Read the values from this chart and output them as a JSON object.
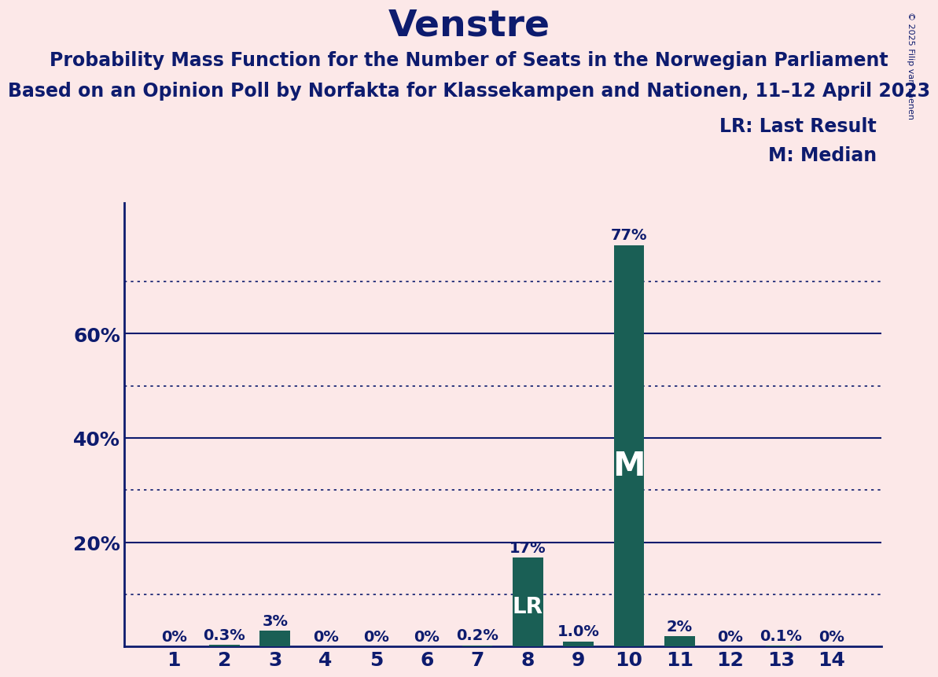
{
  "title": "Venstre",
  "subtitle1": "Probability Mass Function for the Number of Seats in the Norwegian Parliament",
  "subtitle2": "Based on an Opinion Poll by Norfakta for Klassekampen and Nationen, 11–12 April 2023",
  "copyright": "© 2025 Filip van Laenen",
  "categories": [
    1,
    2,
    3,
    4,
    5,
    6,
    7,
    8,
    9,
    10,
    11,
    12,
    13,
    14
  ],
  "values": [
    0.0,
    0.3,
    3.0,
    0.0,
    0.0,
    0.0,
    0.2,
    17.0,
    1.0,
    77.0,
    2.0,
    0.0,
    0.1,
    0.0
  ],
  "labels": [
    "0%",
    "0.3%",
    "3%",
    "0%",
    "0%",
    "0%",
    "0.2%",
    "17%",
    "1.0%",
    "77%",
    "2%",
    "0%",
    "0.1%",
    "0%"
  ],
  "bar_color": "#1a5f55",
  "background_color": "#fce8e8",
  "text_color": "#0d1b6e",
  "lr_index": 7,
  "median_index": 9,
  "legend_lr": "LR: Last Result",
  "legend_m": "M: Median",
  "ylim": [
    0,
    85
  ],
  "yticks": [
    20,
    40,
    60
  ],
  "ytick_labels": [
    "20%",
    "40%",
    "60%"
  ],
  "dotted_lines": [
    10,
    30,
    50,
    70
  ],
  "solid_lines": [
    20,
    40,
    60
  ],
  "title_fontsize": 34,
  "subtitle_fontsize": 17,
  "label_fontsize": 14,
  "axis_tick_fontsize": 18,
  "legend_fontsize": 17,
  "lr_label_fontsize": 20,
  "m_label_fontsize": 30
}
